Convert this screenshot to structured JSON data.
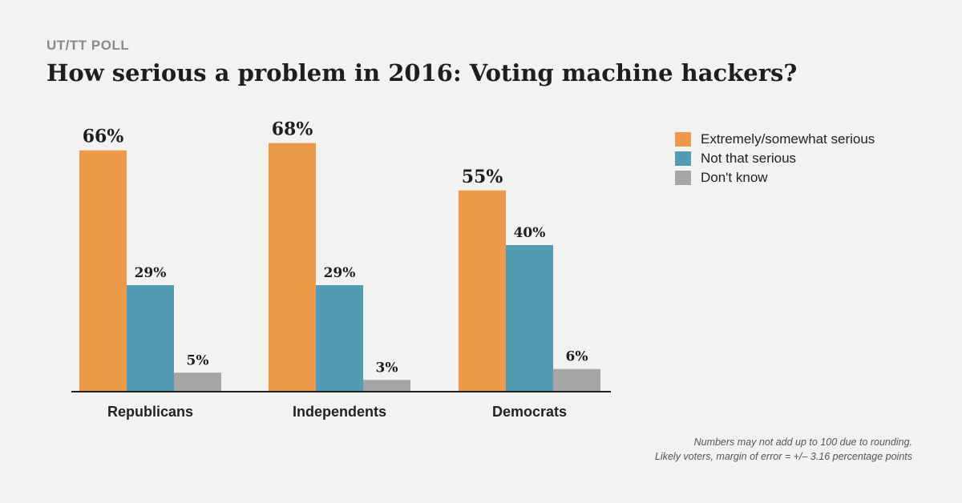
{
  "header": {
    "kicker": "UT/TT POLL",
    "title": "How serious a problem in 2016: Voting machine hackers?"
  },
  "chart_data": {
    "type": "bar",
    "categories": [
      "Republicans",
      "Independents",
      "Democrats"
    ],
    "series": [
      {
        "name": "Extremely/somewhat serious",
        "color": "#ec9a49",
        "values": [
          66,
          68,
          55
        ],
        "labels": [
          "66%",
          "68%",
          "55%"
        ]
      },
      {
        "name": "Not that serious",
        "color": "#529cb3",
        "values": [
          29,
          29,
          40
        ],
        "labels": [
          "29%",
          "29%",
          "40%"
        ]
      },
      {
        "name": "Don't know",
        "color": "#a5a5a5",
        "values": [
          5,
          3,
          6
        ],
        "labels": [
          "5%",
          "3%",
          "6%"
        ]
      }
    ],
    "ylim": [
      0,
      100
    ],
    "legend": "top-right",
    "grid": false
  },
  "footnote": {
    "line1": "Numbers may not add up to 100 due to rounding.",
    "line2": "Likely voters, margin of error = +/– 3.16 percentage points"
  }
}
